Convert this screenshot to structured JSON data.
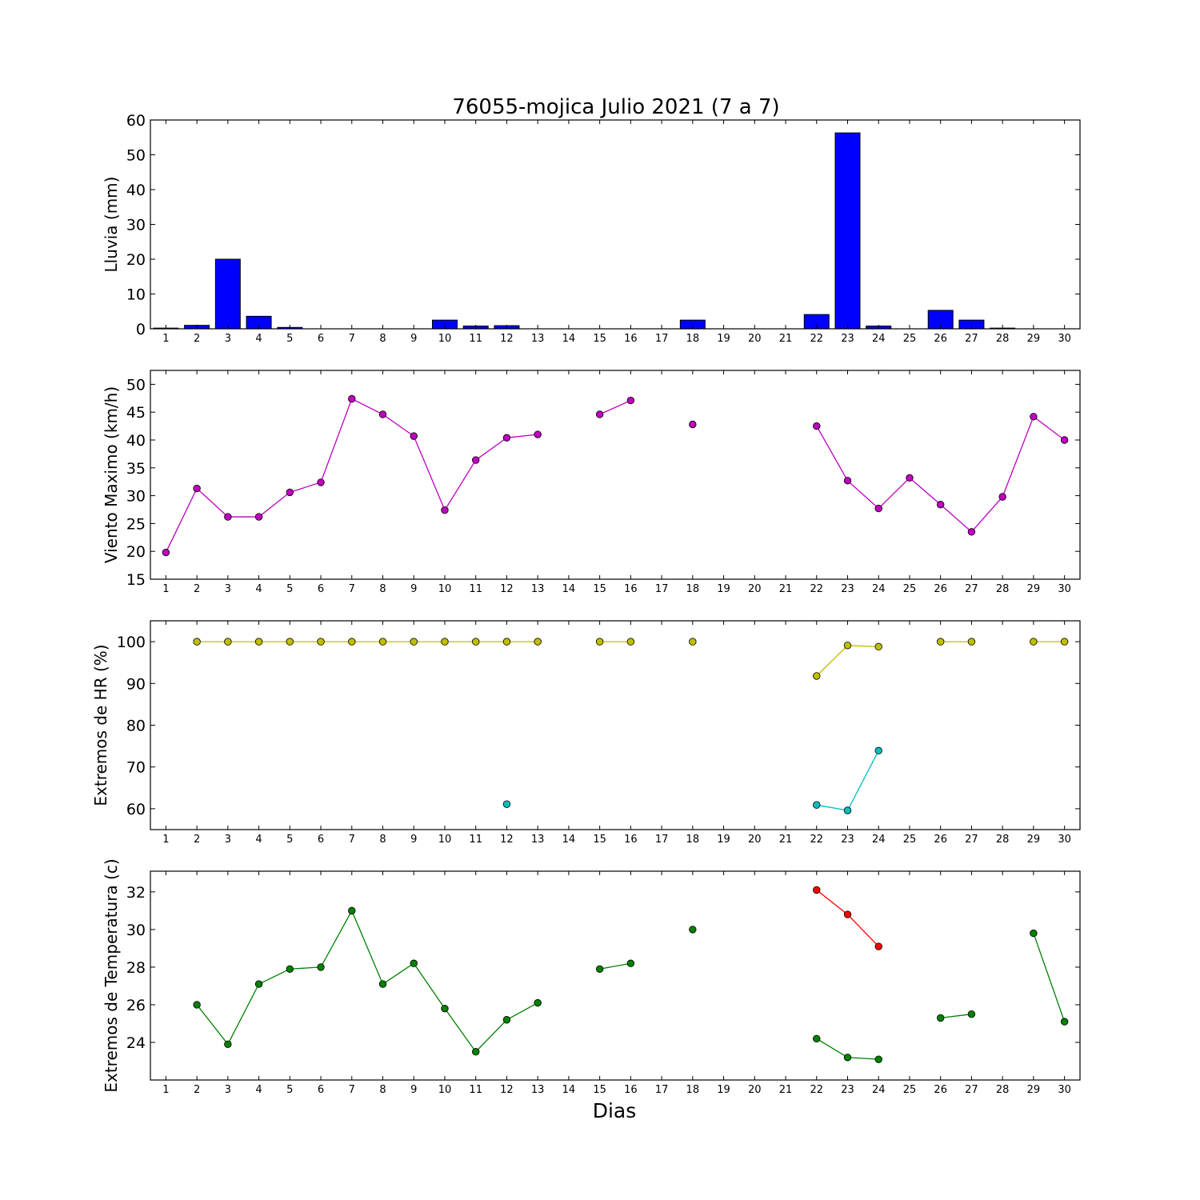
{
  "chart_data": {
    "title": "76055-mojica Julio 2021  (7 a 7)",
    "xlabel": "Dias",
    "days": [
      1,
      2,
      3,
      4,
      5,
      6,
      7,
      8,
      9,
      10,
      11,
      12,
      13,
      14,
      15,
      16,
      17,
      18,
      19,
      20,
      21,
      22,
      23,
      24,
      25,
      26,
      27,
      28,
      29,
      30
    ],
    "panels": [
      {
        "id": "lluvia",
        "type": "bar",
        "ylabel": "Lluvia (mm)",
        "ylim": [
          0,
          60
        ],
        "yticks": [
          0,
          10,
          20,
          30,
          40,
          50,
          60
        ],
        "series": [
          {
            "color": "#0000ff",
            "values": [
              0.2,
              1.0,
              20.0,
              3.6,
              0.4,
              0,
              0,
              0,
              0,
              2.5,
              0.8,
              0.9,
              0,
              0,
              0,
              0,
              0,
              2.5,
              0,
              0,
              0,
              4.1,
              56.3,
              0.8,
              0,
              5.3,
              2.5,
              0.2,
              0,
              0
            ]
          }
        ]
      },
      {
        "id": "viento",
        "type": "line",
        "ylabel": "Viento Maximo (km/h)",
        "ylim": [
          15,
          52.5
        ],
        "yticks": [
          15,
          20,
          25,
          30,
          35,
          40,
          45,
          50
        ],
        "series": [
          {
            "color": "#bf00bf",
            "values": [
              19.8,
              31.3,
              26.2,
              26.2,
              30.6,
              32.4,
              47.4,
              44.6,
              40.7,
              27.4,
              36.4,
              40.4,
              41.0,
              null,
              44.6,
              47.1,
              null,
              42.8,
              null,
              null,
              null,
              42.5,
              32.7,
              27.7,
              33.2,
              28.4,
              23.5,
              29.8,
              44.2,
              40.0
            ]
          }
        ]
      },
      {
        "id": "hr",
        "type": "line",
        "ylabel": "Extremos de HR (%)",
        "ylim": [
          55,
          105
        ],
        "yticks": [
          60,
          70,
          80,
          90,
          100
        ],
        "series": [
          {
            "color": "#bfbf00",
            "values": [
              null,
              100,
              100,
              100,
              100,
              100,
              100,
              100,
              100,
              100,
              100,
              100,
              100,
              null,
              100,
              100,
              null,
              100,
              null,
              null,
              null,
              91.8,
              99.1,
              98.8,
              null,
              100,
              100,
              null,
              100,
              100
            ]
          },
          {
            "color": "#00bfbf",
            "values": [
              null,
              null,
              null,
              null,
              null,
              null,
              null,
              null,
              null,
              null,
              null,
              61.1,
              null,
              null,
              null,
              null,
              null,
              null,
              null,
              null,
              null,
              60.9,
              59.6,
              73.9,
              null,
              null,
              null,
              null,
              null,
              null
            ]
          }
        ]
      },
      {
        "id": "temperatura",
        "type": "line",
        "ylabel": "Extremos de Temperatura (c)",
        "ylim": [
          22,
          33.1
        ],
        "yticks": [
          24,
          26,
          28,
          30,
          32
        ],
        "series": [
          {
            "color": "#ff0000",
            "values": [
              null,
              null,
              null,
              null,
              null,
              null,
              null,
              null,
              null,
              null,
              null,
              null,
              null,
              null,
              null,
              null,
              null,
              null,
              null,
              null,
              null,
              32.1,
              30.8,
              29.1,
              null,
              null,
              null,
              null,
              null,
              null
            ]
          },
          {
            "color": "#008000",
            "values": [
              null,
              26.0,
              23.9,
              27.1,
              27.9,
              28.0,
              31.0,
              27.1,
              28.2,
              25.8,
              23.5,
              25.2,
              26.1,
              null,
              27.9,
              28.2,
              null,
              30.0,
              null,
              null,
              null,
              24.2,
              23.2,
              23.1,
              null,
              25.3,
              25.5,
              null,
              29.8,
              25.1
            ]
          }
        ]
      }
    ]
  }
}
